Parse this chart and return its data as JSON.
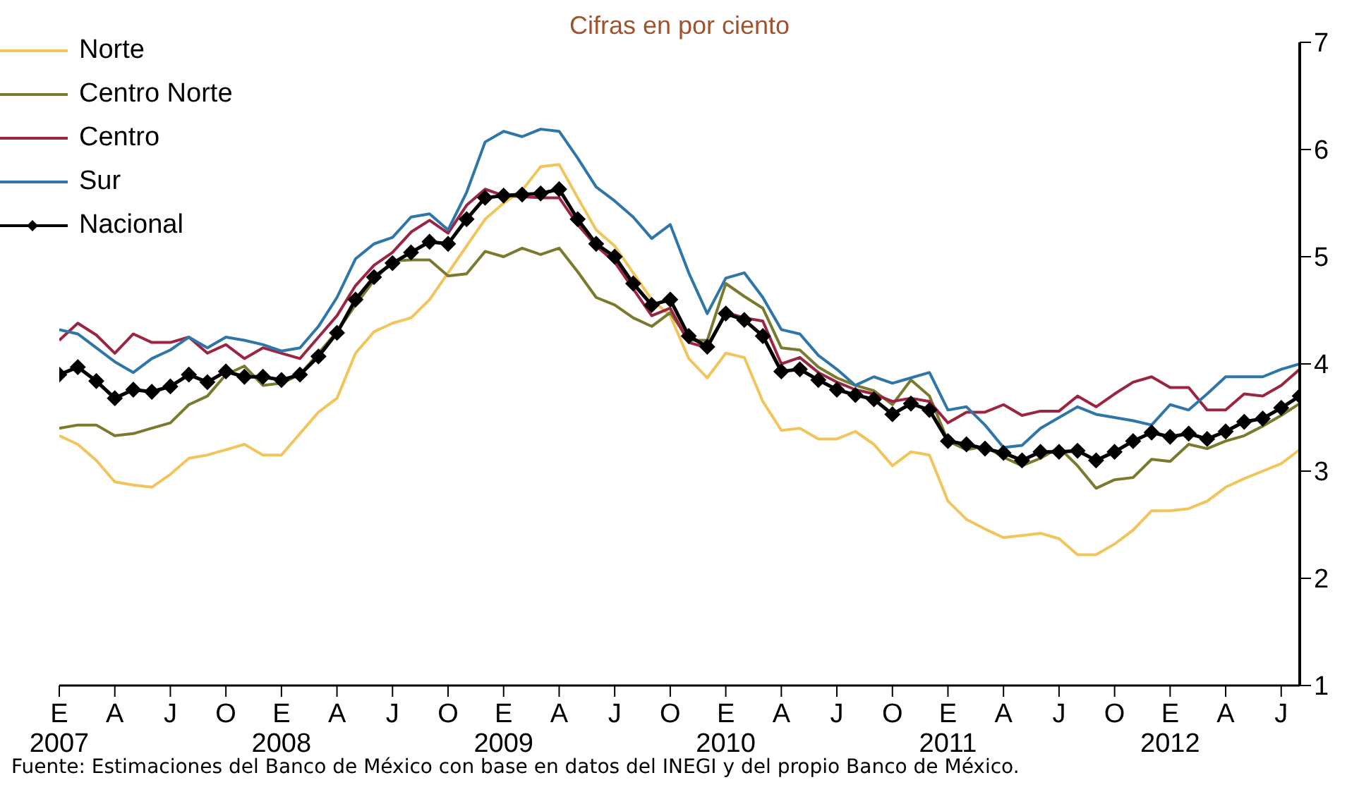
{
  "chart_data": {
    "type": "line",
    "title": "Cifras en por ciento",
    "annotations": [
      "Fuente: Estimaciones del Banco de México con base en datos del INEGI y del propio Banco de México."
    ],
    "x": [
      "2007-01",
      "2007-02",
      "2007-03",
      "2007-04",
      "2007-05",
      "2007-06",
      "2007-07",
      "2007-08",
      "2007-09",
      "2007-10",
      "2007-11",
      "2007-12",
      "2008-01",
      "2008-02",
      "2008-03",
      "2008-04",
      "2008-05",
      "2008-06",
      "2008-07",
      "2008-08",
      "2008-09",
      "2008-10",
      "2008-11",
      "2008-12",
      "2009-01",
      "2009-02",
      "2009-03",
      "2009-04",
      "2009-05",
      "2009-06",
      "2009-07",
      "2009-08",
      "2009-09",
      "2009-10",
      "2009-11",
      "2009-12",
      "2010-01",
      "2010-02",
      "2010-03",
      "2010-04",
      "2010-05",
      "2010-06",
      "2010-07",
      "2010-08",
      "2010-09",
      "2010-10",
      "2010-11",
      "2010-12",
      "2011-01",
      "2011-02",
      "2011-03",
      "2011-04",
      "2011-05",
      "2011-06",
      "2011-07",
      "2011-08",
      "2011-09",
      "2011-10",
      "2011-11",
      "2011-12",
      "2012-01",
      "2012-02",
      "2012-03",
      "2012-04",
      "2012-05",
      "2012-06",
      "2012-07",
      "2012-08"
    ],
    "series": [
      {
        "name": "Norte",
        "color": "#f2c55c",
        "marker": "none",
        "values": [
          3.33,
          3.25,
          3.1,
          2.9,
          2.87,
          2.85,
          2.97,
          3.12,
          3.15,
          3.2,
          3.25,
          3.15,
          3.15,
          3.35,
          3.55,
          3.68,
          4.1,
          4.3,
          4.38,
          4.43,
          4.6,
          4.85,
          5.1,
          5.35,
          5.5,
          5.62,
          5.84,
          5.86,
          5.55,
          5.25,
          5.1,
          4.85,
          4.6,
          4.45,
          4.05,
          3.87,
          4.1,
          4.06,
          3.65,
          3.38,
          3.4,
          3.3,
          3.3,
          3.37,
          3.25,
          3.05,
          3.18,
          3.15,
          2.72,
          2.55,
          2.46,
          2.38,
          2.4,
          2.42,
          2.37,
          2.22,
          2.22,
          2.32,
          2.45,
          2.63,
          2.63,
          2.65,
          2.72,
          2.85,
          2.93,
          3.0,
          3.07,
          3.2
        ]
      },
      {
        "name": "Centro Norte",
        "color": "#7a7a2e",
        "marker": "none",
        "values": [
          3.4,
          3.43,
          3.43,
          3.33,
          3.35,
          3.4,
          3.45,
          3.62,
          3.7,
          3.9,
          3.98,
          3.8,
          3.82,
          3.9,
          4.1,
          4.3,
          4.55,
          4.78,
          4.96,
          4.97,
          4.97,
          4.82,
          4.84,
          5.05,
          5.0,
          5.08,
          5.02,
          5.08,
          4.86,
          4.62,
          4.55,
          4.43,
          4.35,
          4.48,
          4.22,
          4.22,
          4.75,
          4.63,
          4.52,
          4.15,
          4.13,
          3.97,
          3.87,
          3.8,
          3.75,
          3.62,
          3.85,
          3.7,
          3.28,
          3.2,
          3.23,
          3.13,
          3.05,
          3.12,
          3.22,
          3.05,
          2.84,
          2.92,
          2.94,
          3.11,
          3.09,
          3.25,
          3.21,
          3.28,
          3.33,
          3.42,
          3.52,
          3.63
        ]
      },
      {
        "name": "Centro",
        "color": "#9b2440",
        "marker": "none",
        "values": [
          4.22,
          4.38,
          4.27,
          4.1,
          4.28,
          4.2,
          4.2,
          4.25,
          4.1,
          4.18,
          4.05,
          4.15,
          4.1,
          4.05,
          4.25,
          4.45,
          4.73,
          4.92,
          5.04,
          5.23,
          5.34,
          5.22,
          5.48,
          5.63,
          5.57,
          5.56,
          5.55,
          5.55,
          5.3,
          5.1,
          4.95,
          4.7,
          4.45,
          4.52,
          4.2,
          4.15,
          4.48,
          4.43,
          4.4,
          4.0,
          4.06,
          3.92,
          3.83,
          3.76,
          3.72,
          3.65,
          3.68,
          3.65,
          3.45,
          3.55,
          3.55,
          3.62,
          3.52,
          3.56,
          3.56,
          3.7,
          3.6,
          3.72,
          3.83,
          3.88,
          3.78,
          3.78,
          3.57,
          3.57,
          3.72,
          3.7,
          3.8,
          3.95
        ]
      },
      {
        "name": "Sur",
        "color": "#2e75a8",
        "marker": "none",
        "values": [
          4.32,
          4.28,
          4.15,
          4.02,
          3.92,
          4.05,
          4.13,
          4.25,
          4.15,
          4.25,
          4.22,
          4.18,
          4.12,
          4.15,
          4.35,
          4.62,
          4.98,
          5.12,
          5.18,
          5.37,
          5.4,
          5.25,
          5.6,
          6.07,
          6.17,
          6.12,
          6.19,
          6.17,
          5.92,
          5.65,
          5.52,
          5.37,
          5.17,
          5.3,
          4.85,
          4.47,
          4.8,
          4.85,
          4.62,
          4.32,
          4.28,
          4.08,
          3.95,
          3.8,
          3.88,
          3.82,
          3.87,
          3.92,
          3.57,
          3.6,
          3.43,
          3.22,
          3.24,
          3.4,
          3.5,
          3.6,
          3.53,
          3.5,
          3.47,
          3.43,
          3.62,
          3.57,
          3.72,
          3.88,
          3.88,
          3.88,
          3.95,
          4.0
        ]
      },
      {
        "name": "Nacional",
        "color": "#000000",
        "marker": "diamond",
        "values": [
          3.9,
          3.97,
          3.84,
          3.68,
          3.76,
          3.74,
          3.79,
          3.9,
          3.83,
          3.93,
          3.88,
          3.88,
          3.85,
          3.9,
          4.07,
          4.29,
          4.6,
          4.81,
          4.94,
          5.04,
          5.14,
          5.12,
          5.35,
          5.55,
          5.57,
          5.58,
          5.59,
          5.63,
          5.35,
          5.12,
          5.0,
          4.75,
          4.55,
          4.6,
          4.26,
          4.16,
          4.47,
          4.41,
          4.26,
          3.93,
          3.95,
          3.85,
          3.76,
          3.71,
          3.67,
          3.53,
          3.63,
          3.57,
          3.28,
          3.25,
          3.21,
          3.17,
          3.1,
          3.18,
          3.18,
          3.19,
          3.1,
          3.18,
          3.28,
          3.36,
          3.32,
          3.35,
          3.3,
          3.37,
          3.46,
          3.49,
          3.59,
          3.7
        ]
      }
    ],
    "xlim": [
      "2007-01",
      "2012-08"
    ],
    "xticks": [
      {
        "value": "2007-01",
        "label": "E\n2007"
      },
      {
        "value": "2007-04",
        "label": "A"
      },
      {
        "value": "2007-07",
        "label": "J"
      },
      {
        "value": "2007-10",
        "label": "O"
      },
      {
        "value": "2008-01",
        "label": "E\n2008"
      },
      {
        "value": "2008-04",
        "label": "A"
      },
      {
        "value": "2008-07",
        "label": "J"
      },
      {
        "value": "2008-10",
        "label": "O"
      },
      {
        "value": "2009-01",
        "label": "E\n2009"
      },
      {
        "value": "2009-04",
        "label": "A"
      },
      {
        "value": "2009-07",
        "label": "J"
      },
      {
        "value": "2009-10",
        "label": "O"
      },
      {
        "value": "2010-01",
        "label": "E\n2010"
      },
      {
        "value": "2010-04",
        "label": "A"
      },
      {
        "value": "2010-07",
        "label": "J"
      },
      {
        "value": "2010-10",
        "label": "O"
      },
      {
        "value": "2011-01",
        "label": "E\n2011"
      },
      {
        "value": "2011-04",
        "label": "A"
      },
      {
        "value": "2011-07",
        "label": "J"
      },
      {
        "value": "2011-10",
        "label": "O"
      },
      {
        "value": "2012-01",
        "label": "E\n2012"
      },
      {
        "value": "2012-04",
        "label": "A"
      },
      {
        "value": "2012-07",
        "label": "J"
      }
    ],
    "ylim": [
      1,
      7
    ],
    "yticks": [
      1,
      2,
      3,
      4,
      5,
      6,
      7
    ],
    "grid": false,
    "legend": "top left"
  }
}
